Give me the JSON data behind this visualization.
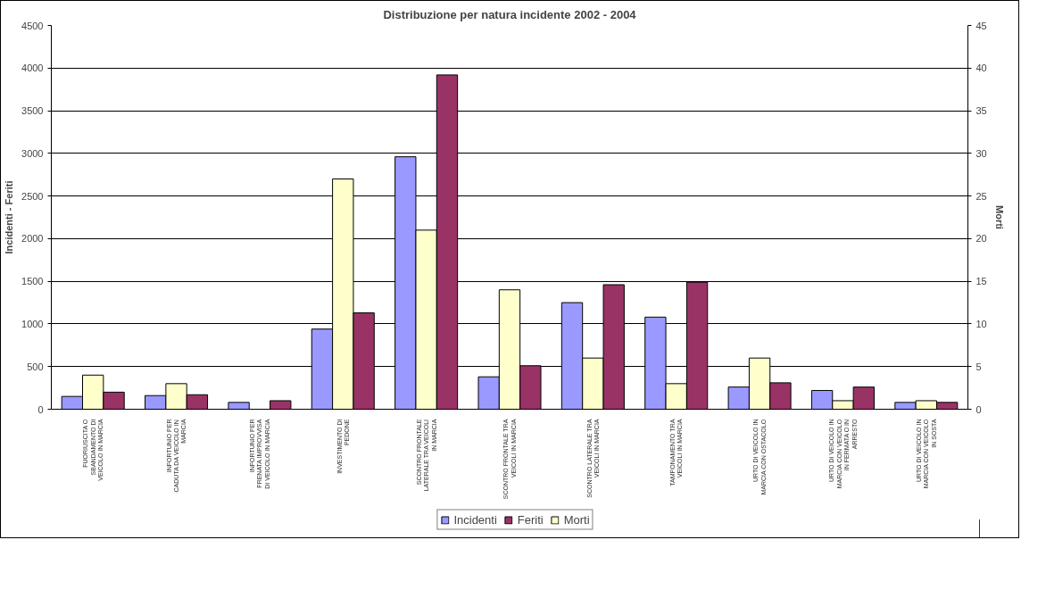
{
  "chart_data": {
    "type": "bar",
    "title": "Distribuzione per natura incidente 2002 - 2004",
    "ylabel": "Incidenti - Feriti",
    "y2label": "Morti",
    "categories": [
      "FUORIUSCITA O SBANDAMENTO DI VEICOLO IN MARCIA",
      "INFORTUNIO PER CADUTA DA VEICOLO IN MARCIA",
      "INFORTUNIO PER FRENATA IMPROVVISA DI VEICOLO IN MARCIA",
      "INVESTIMENTO DI PEDONE",
      "SCONTRO FRONTALE LATERALE TRA VEICOLI IN MARCIA",
      "SCONTRO FRONTALE TRA VEICOLI IN MARCIA",
      "SCONTRO LATERALE TRA VEICOLI IN MARCIA",
      "TAMPONAMENTO TRA VEICOLI IN MARCIA",
      "URTO DI VEICOLO IN MARCIA CON OSTACOLO",
      "URTO DI VEICOLO IN MARCIA CON VEICOLO IN FERMATA O IN ARRESTO",
      "URTO DI VEICOLO IN MARCIA CON VEICOLO IN SOSTA"
    ],
    "series": [
      {
        "name": "Incidenti",
        "color": "#9999ff",
        "values": [
          150,
          160,
          80,
          940,
          2960,
          380,
          1250,
          1080,
          260,
          220,
          80
        ]
      },
      {
        "name": "Morti",
        "color": "#ffffcc",
        "axis": "y2",
        "values": [
          4,
          3,
          0,
          27,
          21,
          14,
          6,
          3,
          6,
          1,
          1
        ]
      },
      {
        "name": "Feriti",
        "color": "#993366",
        "values": [
          200,
          170,
          100,
          1130,
          3920,
          510,
          1460,
          1490,
          310,
          260,
          80
        ]
      }
    ],
    "ylim": [
      0,
      4500
    ],
    "yticks": [
      0,
      500,
      1000,
      1500,
      2000,
      2500,
      3000,
      3500,
      4000,
      4500
    ],
    "y2lim": [
      0,
      45
    ],
    "y2ticks": [
      0,
      5,
      10,
      15,
      20,
      25,
      30,
      35,
      40,
      45
    ],
    "grid": "y",
    "legend": "bottom"
  }
}
